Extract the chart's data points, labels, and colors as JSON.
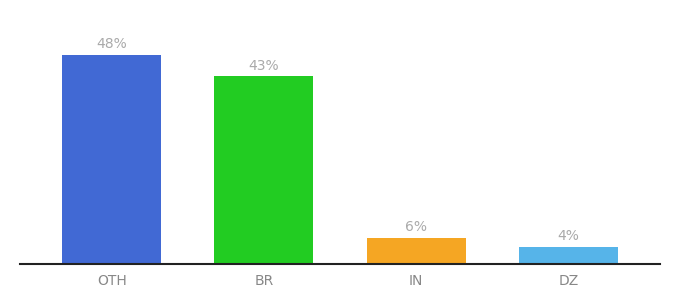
{
  "categories": [
    "OTH",
    "BR",
    "IN",
    "DZ"
  ],
  "values": [
    48,
    43,
    6,
    4
  ],
  "bar_colors": [
    "#4169d4",
    "#22cc22",
    "#f5a623",
    "#56b4e9"
  ],
  "ylim": [
    0,
    55
  ],
  "background_color": "#ffffff",
  "label_color": "#aaaaaa",
  "tick_color": "#888888",
  "bar_width": 0.65,
  "label_fontsize": 10,
  "tick_fontsize": 10,
  "spine_color": "#222222"
}
